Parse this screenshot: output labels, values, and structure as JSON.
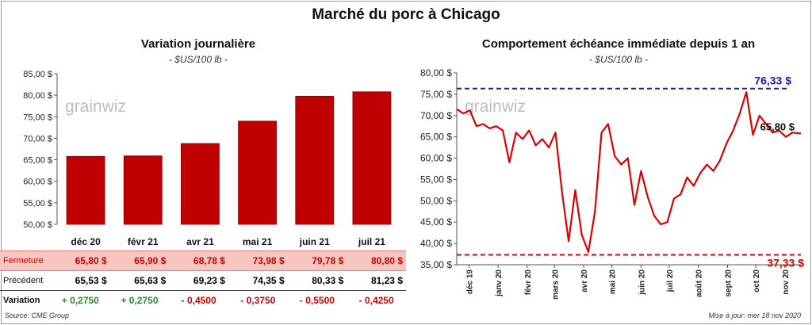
{
  "title": "Marché du porc à Chicago",
  "colors": {
    "bar": "#c00000",
    "line": "#dd0000",
    "max_line": "#1a1ab4",
    "min_line": "#dd0000",
    "positive": "#2a8a2a",
    "negative": "#cc0000"
  },
  "watermark": "grainwiz",
  "chart_data": [
    {
      "type": "bar",
      "title": "Variation journalière",
      "subtitle": "- $US/100 lb -",
      "categories": [
        "déc 20",
        "févr 21",
        "avr 21",
        "mai 21",
        "juin 21",
        "juil 21"
      ],
      "values": [
        65.8,
        65.9,
        68.78,
        73.98,
        79.78,
        80.8
      ],
      "ylim": [
        50,
        85
      ],
      "yticks": [
        "50,00 $",
        "55,00 $",
        "60,00 $",
        "65,00 $",
        "70,00 $",
        "75,00 $",
        "80,00 $",
        "85,00 $"
      ],
      "grid": false
    },
    {
      "type": "line",
      "title": "Comportement échéance immédiate depuis 1 an",
      "subtitle": "- $US/100 lb -",
      "ylim": [
        35,
        80
      ],
      "yticks": [
        "35,00 $",
        "40,00 $",
        "45,00 $",
        "50,00 $",
        "55,00 $",
        "60,00 $",
        "65,00 $",
        "70,00 $",
        "75,00 $",
        "80,00 $"
      ],
      "xticks": [
        "déc 19",
        "janv 20",
        "févr 20",
        "mars 20",
        "avr 20",
        "mai 20",
        "juin 20",
        "juil 20",
        "août 20",
        "sept 20",
        "oct 20",
        "nov 20"
      ],
      "x": [
        "2019-11-18",
        "2019-11-25",
        "2019-12-02",
        "2019-12-09",
        "2019-12-16",
        "2019-12-23",
        "2019-12-30",
        "2020-01-06",
        "2020-01-13",
        "2020-01-20",
        "2020-01-27",
        "2020-02-03",
        "2020-02-10",
        "2020-02-17",
        "2020-02-24",
        "2020-03-02",
        "2020-03-09",
        "2020-03-16",
        "2020-03-23",
        "2020-03-30",
        "2020-04-06",
        "2020-04-13",
        "2020-04-20",
        "2020-04-27",
        "2020-05-04",
        "2020-05-11",
        "2020-05-18",
        "2020-05-25",
        "2020-06-01",
        "2020-06-08",
        "2020-06-15",
        "2020-06-22",
        "2020-06-29",
        "2020-07-06",
        "2020-07-13",
        "2020-07-20",
        "2020-07-27",
        "2020-08-03",
        "2020-08-10",
        "2020-08-17",
        "2020-08-24",
        "2020-08-31",
        "2020-09-07",
        "2020-09-14",
        "2020-09-21",
        "2020-09-28",
        "2020-10-05",
        "2020-10-12",
        "2020-10-19",
        "2020-10-26",
        "2020-11-02",
        "2020-11-09",
        "2020-11-18"
      ],
      "values": [
        71.5,
        70.5,
        71.2,
        67.5,
        68.0,
        67.0,
        67.5,
        66.5,
        59.0,
        66.0,
        64.5,
        66.5,
        63.0,
        64.5,
        62.5,
        66.0,
        52.0,
        40.5,
        52.5,
        42.0,
        38.0,
        47.5,
        66.0,
        68.0,
        60.5,
        58.5,
        60.0,
        49.0,
        57.0,
        51.0,
        46.5,
        44.5,
        45.0,
        50.5,
        51.5,
        55.5,
        53.5,
        56.5,
        58.5,
        57.0,
        59.5,
        63.5,
        66.5,
        70.5,
        75.5,
        65.5,
        70.0,
        68.0,
        66.0,
        66.5,
        65.0,
        66.0,
        65.8
      ],
      "annotations": {
        "max": {
          "value": 76.33,
          "label": "76,33 $"
        },
        "min": {
          "value": 37.33,
          "label": "37,33 $"
        },
        "last": {
          "value": 65.8,
          "label": "65,80 $"
        }
      },
      "grid": false
    }
  ],
  "table": {
    "rows": [
      {
        "label": "Fermeture",
        "values": [
          "65,80  $",
          "65,90  $",
          "68,78  $",
          "73,98  $",
          "79,78  $",
          "80,80  $"
        ]
      },
      {
        "label": "Précédent",
        "values": [
          "65,53  $",
          "65,63  $",
          "69,23  $",
          "74,35  $",
          "80,33  $",
          "81,23  $"
        ]
      },
      {
        "label": "Variation",
        "values": [
          "+ 0,2750",
          "+ 0,2750",
          "- 0,4500",
          "- 0,3750",
          "- 0,5500",
          "- 0,4250"
        ],
        "signs": [
          "pos",
          "pos",
          "neg",
          "neg",
          "neg",
          "neg"
        ]
      }
    ]
  },
  "source": "Source: CME Group",
  "updated": "Mise à jour: mer 18 nov 2020"
}
